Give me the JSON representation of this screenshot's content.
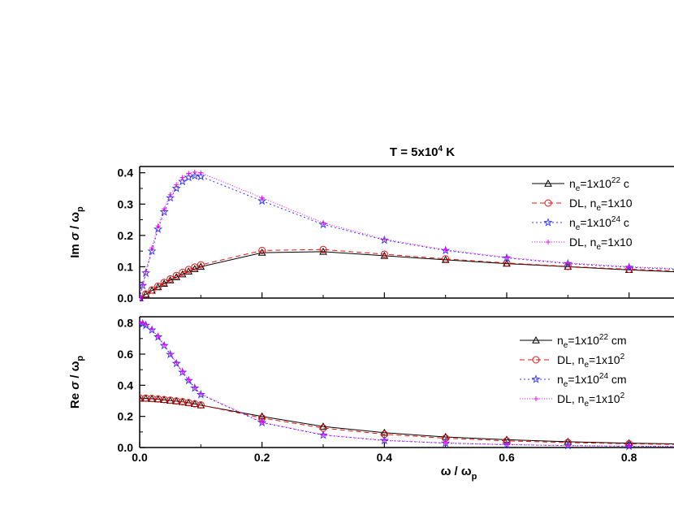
{
  "figure": {
    "title_prefix": "T = 5x10",
    "title_exp": "4",
    "title_suffix": " K"
  },
  "chart_data": [
    {
      "type": "line",
      "panel": "top",
      "ylabel_main": "Im",
      "ylabel_sigma": "σ",
      "ylabel_omega": "/ ω",
      "ylabel_sub": "p",
      "ylim": [
        0,
        0.42
      ],
      "xlim": [
        0,
        0.9
      ],
      "yticks": [
        "0.0",
        "0.1",
        "0.2",
        "0.3",
        "0.4"
      ],
      "ytick_values": [
        0,
        0.1,
        0.2,
        0.3,
        0.4
      ],
      "legend_position": "top-right",
      "series": [
        {
          "legend": [
            "n",
            "e",
            "=1x10",
            "22",
            " c"
          ],
          "color": "#000000",
          "dash": "",
          "marker": "triangle",
          "x": [
            0,
            0.01,
            0.02,
            0.03,
            0.04,
            0.05,
            0.06,
            0.07,
            0.08,
            0.09,
            0.1,
            0.2,
            0.3,
            0.4,
            0.5,
            0.6,
            0.7,
            0.8,
            0.9
          ],
          "values": [
            0,
            0.012,
            0.024,
            0.035,
            0.046,
            0.057,
            0.067,
            0.076,
            0.085,
            0.093,
            0.1,
            0.145,
            0.148,
            0.135,
            0.122,
            0.11,
            0.1,
            0.09,
            0.082
          ]
        },
        {
          "legend": [
            "DL, n",
            "e",
            "=1x10",
            "",
            ""
          ],
          "color": "#ee1111",
          "dash": "6,4",
          "marker": "circle",
          "x": [
            0,
            0.01,
            0.02,
            0.03,
            0.04,
            0.05,
            0.06,
            0.07,
            0.08,
            0.09,
            0.1,
            0.2,
            0.3,
            0.4,
            0.5,
            0.6,
            0.7,
            0.8,
            0.9
          ],
          "values": [
            0,
            0.013,
            0.026,
            0.038,
            0.05,
            0.061,
            0.072,
            0.082,
            0.091,
            0.099,
            0.106,
            0.152,
            0.155,
            0.14,
            0.125,
            0.112,
            0.101,
            0.092,
            0.085
          ]
        },
        {
          "legend": [
            "n",
            "e",
            "=1x10",
            "24",
            " c"
          ],
          "color": "#3333ff",
          "dash": "2,3",
          "marker": "star",
          "x": [
            0,
            0.005,
            0.01,
            0.02,
            0.03,
            0.04,
            0.05,
            0.06,
            0.07,
            0.08,
            0.09,
            0.1,
            0.2,
            0.3,
            0.4,
            0.5,
            0.6,
            0.7,
            0.8,
            0.9
          ],
          "values": [
            0,
            0.04,
            0.08,
            0.15,
            0.22,
            0.275,
            0.32,
            0.35,
            0.372,
            0.385,
            0.39,
            0.388,
            0.31,
            0.235,
            0.185,
            0.152,
            0.128,
            0.11,
            0.098,
            0.09
          ]
        },
        {
          "legend": [
            "DL, n",
            "e",
            "=1x10",
            "",
            ""
          ],
          "color": "#ff00ff",
          "dash": "1,2",
          "marker": "plus",
          "x": [
            0,
            0.005,
            0.01,
            0.02,
            0.03,
            0.04,
            0.05,
            0.06,
            0.07,
            0.08,
            0.09,
            0.1,
            0.2,
            0.3,
            0.4,
            0.5,
            0.6,
            0.7,
            0.8,
            0.9
          ],
          "values": [
            0,
            0.042,
            0.085,
            0.16,
            0.23,
            0.285,
            0.33,
            0.362,
            0.385,
            0.398,
            0.402,
            0.4,
            0.32,
            0.24,
            0.188,
            0.154,
            0.13,
            0.112,
            0.1,
            0.092
          ]
        }
      ]
    },
    {
      "type": "line",
      "panel": "bottom",
      "ylabel_main": "Re",
      "ylabel_sigma": "σ",
      "ylabel_omega": "/ ω",
      "ylabel_sub": "p",
      "xlabel_omega": "ω / ω",
      "xlabel_sub": "p",
      "ylim": [
        0,
        0.84
      ],
      "xlim": [
        0,
        0.9
      ],
      "yticks": [
        "0.0",
        "0.2",
        "0.4",
        "0.6",
        "0.8"
      ],
      "ytick_values": [
        0,
        0.2,
        0.4,
        0.6,
        0.8
      ],
      "xticks": [
        "0.0",
        "0.2",
        "0.4",
        "0.6",
        "0.8"
      ],
      "xtick_values": [
        0,
        0.2,
        0.4,
        0.6,
        0.8
      ],
      "legend_position": "top-right",
      "series": [
        {
          "legend": [
            "n",
            "e",
            "=1x10",
            "22",
            " cm"
          ],
          "color": "#000000",
          "dash": "",
          "marker": "triangle",
          "x": [
            0,
            0.01,
            0.02,
            0.03,
            0.04,
            0.05,
            0.06,
            0.07,
            0.08,
            0.09,
            0.1,
            0.2,
            0.3,
            0.4,
            0.5,
            0.6,
            0.7,
            0.8,
            0.9
          ],
          "values": [
            0.315,
            0.315,
            0.313,
            0.31,
            0.306,
            0.302,
            0.298,
            0.293,
            0.287,
            0.28,
            0.272,
            0.2,
            0.135,
            0.095,
            0.068,
            0.05,
            0.037,
            0.028,
            0.022
          ]
        },
        {
          "legend": [
            "DL, n",
            "e",
            "=1x10",
            "2",
            ""
          ],
          "color": "#ee1111",
          "dash": "6,4",
          "marker": "circle",
          "x": [
            0,
            0.01,
            0.02,
            0.03,
            0.04,
            0.05,
            0.06,
            0.07,
            0.08,
            0.09,
            0.1,
            0.2,
            0.3,
            0.4,
            0.5,
            0.6,
            0.7,
            0.8,
            0.9
          ],
          "values": [
            0.318,
            0.317,
            0.315,
            0.312,
            0.308,
            0.304,
            0.299,
            0.294,
            0.288,
            0.281,
            0.273,
            0.19,
            0.125,
            0.085,
            0.06,
            0.043,
            0.032,
            0.024,
            0.018
          ]
        },
        {
          "legend": [
            "n",
            "e",
            "=1x10",
            "24",
            " cm"
          ],
          "color": "#3333ff",
          "dash": "2,3",
          "marker": "star",
          "x": [
            0,
            0.005,
            0.01,
            0.02,
            0.03,
            0.04,
            0.05,
            0.06,
            0.07,
            0.08,
            0.09,
            0.1,
            0.2,
            0.3,
            0.4,
            0.5,
            0.6,
            0.7,
            0.8,
            0.9
          ],
          "values": [
            0.8,
            0.795,
            0.785,
            0.755,
            0.71,
            0.655,
            0.598,
            0.54,
            0.483,
            0.43,
            0.382,
            0.34,
            0.16,
            0.08,
            0.045,
            0.028,
            0.018,
            0.012,
            0.008,
            0.006
          ]
        },
        {
          "legend": [
            "DL, n",
            "e",
            "=1x10",
            "2",
            ""
          ],
          "color": "#ff00ff",
          "dash": "1,2",
          "marker": "plus",
          "x": [
            0,
            0.005,
            0.01,
            0.02,
            0.03,
            0.04,
            0.05,
            0.06,
            0.07,
            0.08,
            0.09,
            0.1,
            0.2,
            0.3,
            0.4,
            0.5,
            0.6,
            0.7,
            0.8,
            0.9
          ],
          "values": [
            0.805,
            0.8,
            0.79,
            0.76,
            0.715,
            0.66,
            0.602,
            0.545,
            0.488,
            0.435,
            0.386,
            0.344,
            0.162,
            0.082,
            0.047,
            0.029,
            0.019,
            0.013,
            0.009,
            0.006
          ]
        }
      ]
    }
  ]
}
